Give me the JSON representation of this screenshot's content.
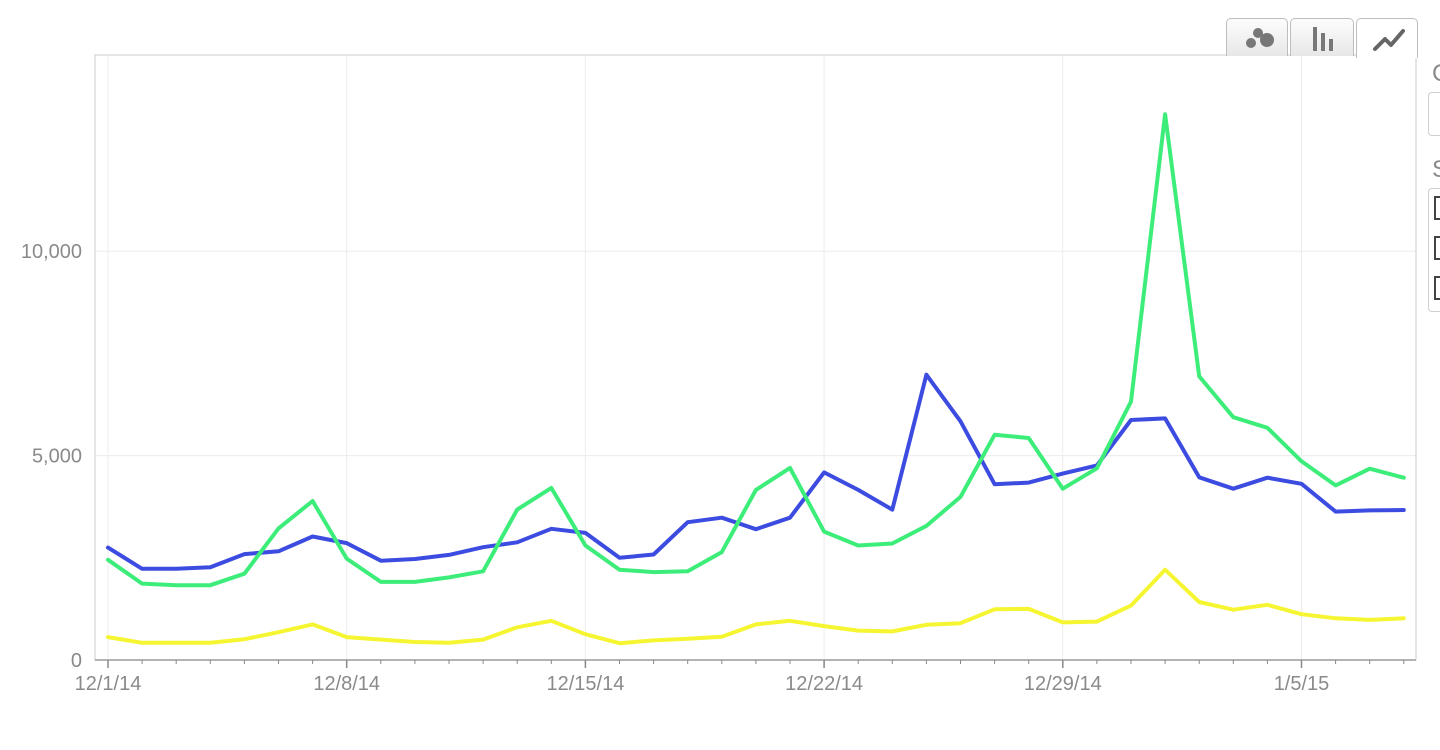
{
  "toolbar": {
    "buttons": [
      {
        "icon": "bubble-chart-icon",
        "active": false
      },
      {
        "icon": "bar-chart-icon",
        "active": false
      },
      {
        "icon": "line-chart-icon",
        "active": true
      }
    ]
  },
  "side_panel": {
    "heading_1": "C",
    "heading_2": "S",
    "checkbox_count": 3
  },
  "chart_data": {
    "type": "line",
    "title": "",
    "xlabel": "",
    "ylabel": "",
    "ylim": [
      0,
      14800
    ],
    "grid": true,
    "x": [
      "2014-12-01",
      "2014-12-02",
      "2014-12-03",
      "2014-12-04",
      "2014-12-05",
      "2014-12-06",
      "2014-12-07",
      "2014-12-08",
      "2014-12-09",
      "2014-12-10",
      "2014-12-11",
      "2014-12-12",
      "2014-12-13",
      "2014-12-14",
      "2014-12-15",
      "2014-12-16",
      "2014-12-17",
      "2014-12-18",
      "2014-12-19",
      "2014-12-20",
      "2014-12-21",
      "2014-12-22",
      "2014-12-23",
      "2014-12-24",
      "2014-12-25",
      "2014-12-26",
      "2014-12-27",
      "2014-12-28",
      "2014-12-29",
      "2014-12-30",
      "2014-12-31",
      "2015-01-01",
      "2015-01-02",
      "2015-01-03",
      "2015-01-04",
      "2015-01-05",
      "2015-01-06",
      "2015-01-07",
      "2015-01-08"
    ],
    "x_tick_labels": [
      "12/1/14",
      "12/8/14",
      "12/15/14",
      "12/22/14",
      "12/29/14",
      "1/5/15"
    ],
    "x_tick_dates": [
      "2014-12-01",
      "2014-12-08",
      "2014-12-15",
      "2014-12-22",
      "2014-12-29",
      "2015-01-05"
    ],
    "y_ticks": [
      0,
      5000,
      10000
    ],
    "y_tick_labels": [
      "0",
      "5,000",
      "10,000"
    ],
    "series": [
      {
        "color": "#3d4ce0",
        "values": [
          2750,
          2230,
          2230,
          2270,
          2590,
          2660,
          3020,
          2860,
          2430,
          2470,
          2570,
          2760,
          2880,
          3210,
          3110,
          2500,
          2580,
          3370,
          3480,
          3200,
          3480,
          4590,
          4160,
          3680,
          6980,
          5840,
          4300,
          4340,
          4560,
          4760,
          5870,
          5910,
          4470,
          4190,
          4460,
          4310,
          3630,
          3660,
          3670
        ],
        "line_width": 4
      },
      {
        "color": "#3ded7a",
        "values": [
          2450,
          1870,
          1830,
          1830,
          2110,
          3220,
          3890,
          2480,
          1910,
          1910,
          2020,
          2170,
          3680,
          4210,
          2800,
          2210,
          2150,
          2170,
          2640,
          4160,
          4700,
          3140,
          2800,
          2850,
          3280,
          3990,
          5510,
          5430,
          4190,
          4690,
          6320,
          13350,
          6940,
          5940,
          5680,
          4860,
          4270,
          4680,
          4460
        ],
        "line_width": 4
      },
      {
        "color": "#f5f531",
        "values": [
          560,
          420,
          420,
          420,
          510,
          680,
          870,
          560,
          500,
          440,
          420,
          500,
          800,
          960,
          630,
          410,
          480,
          520,
          570,
          870,
          960,
          830,
          720,
          700,
          860,
          900,
          1240,
          1250,
          920,
          940,
          1330,
          2210,
          1420,
          1230,
          1350,
          1120,
          1020,
          980,
          1020
        ],
        "line_width": 4
      }
    ]
  }
}
